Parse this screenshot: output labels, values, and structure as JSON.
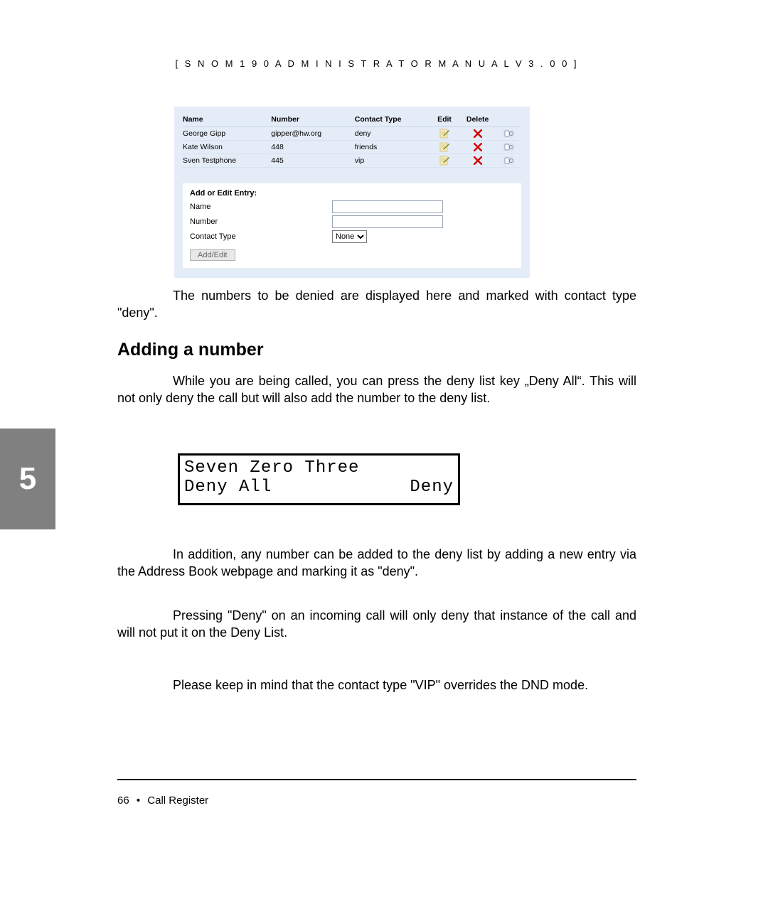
{
  "header": {
    "text_html": "[ S N O M   1 9 0   A D M I N I S T R A T O R   M A N U A L   V 3 . 0 0 ]"
  },
  "contacts": {
    "columns": {
      "name": "Name",
      "number": "Number",
      "type": "Contact Type",
      "edit": "Edit",
      "delete": "Delete"
    },
    "rows": [
      {
        "name": "George Gipp",
        "number": "gipper@hw.org",
        "type": "deny"
      },
      {
        "name": "Kate Wilson",
        "number": "448",
        "type": "friends"
      },
      {
        "name": "Sven Testphone",
        "number": "445",
        "type": "vip"
      }
    ],
    "icons": {
      "edit_fill": "#f7e9b8",
      "edit_pen": "#6b8e23",
      "delete_color": "#d40000",
      "info_bg": "#dfe6ee",
      "info_fg": "#7088a8"
    }
  },
  "form": {
    "title": "Add or Edit Entry:",
    "name_label": "Name",
    "number_label": "Number",
    "type_label": "Contact Type",
    "type_selected": "None",
    "button": "Add/Edit"
  },
  "paragraphs": {
    "p1": "The numbers to be denied are displayed here and marked with contact type \"deny\".",
    "h2": "Adding a number",
    "p2": "While you are being called, you can press the deny list key „Deny All“. This will not only deny the call but will also add the number to the deny list.",
    "p3": "In addition, any number can be added to the deny list by adding a new entry via the Address Book webpage and marking it as \"deny\".",
    "p4": "Pressing \"Deny\" on an incoming call will only deny that instance of the call and will not put it on the Deny List.",
    "p5": "Please keep in mind that the contact type \"VIP\" overrides the DND mode."
  },
  "lcd": {
    "line1": "Seven Zero Three",
    "line2_left": "Deny All",
    "line2_right": "Deny"
  },
  "chapter": {
    "number": "5"
  },
  "footer": {
    "page": "66",
    "section": "Call Register"
  },
  "colors": {
    "panel_bg": "#e4ecf7",
    "tab_bg": "#808080"
  }
}
